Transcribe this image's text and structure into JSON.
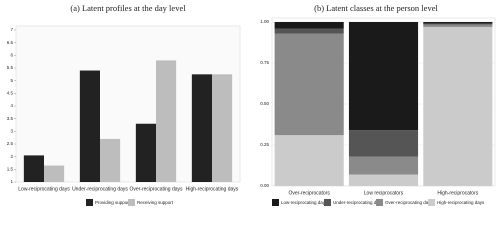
{
  "chart_data": [
    {
      "type": "bar",
      "title": "(a) Latent profiles at the day level",
      "categories": [
        "Low-reciprocating days",
        "Under-reciprocating days",
        "Over-reciprocating days",
        "High-reciprocating days"
      ],
      "series": [
        {
          "name": "Providing support",
          "color": "#222222",
          "values": [
            2.05,
            5.4,
            3.3,
            5.25
          ]
        },
        {
          "name": "Receiving support",
          "color": "#bdbdbd",
          "values": [
            1.65,
            2.7,
            5.8,
            5.25
          ]
        }
      ],
      "ylim": [
        1,
        7
      ],
      "yticks": [
        1,
        1.5,
        2,
        2.5,
        3,
        3.5,
        4,
        4.5,
        5,
        5.5,
        6,
        6.5,
        7
      ],
      "grid": false,
      "legend": "bottom"
    },
    {
      "type": "stacked_bar",
      "title": "(b) Latent classes at the person level",
      "categories": [
        "Over-reciprocators",
        "Low reciprocators",
        "High-reciprocators"
      ],
      "series": [
        {
          "name": "Low-reciprocating days",
          "color": "#1a1a1a",
          "values": [
            0.04,
            0.66,
            0.01
          ]
        },
        {
          "name": "Under-reciprocating days",
          "color": "#555555",
          "values": [
            0.03,
            0.16,
            0.005
          ]
        },
        {
          "name": "Over-reciprocating days",
          "color": "#8a8a8a",
          "values": [
            0.62,
            0.11,
            0.015
          ]
        },
        {
          "name": "High-reciprocating days",
          "color": "#cbcbcb",
          "values": [
            0.31,
            0.07,
            0.97
          ]
        }
      ],
      "ylim": [
        0,
        1
      ],
      "yticks": [
        {
          "value": 0,
          "label": "0.00"
        },
        {
          "value": 0.25,
          "label": "0.25"
        },
        {
          "value": 0.5,
          "label": "0.50"
        },
        {
          "value": 0.75,
          "label": "0.75"
        },
        {
          "value": 1,
          "label": "1.00"
        }
      ],
      "grid": true,
      "legend": "bottom"
    }
  ]
}
